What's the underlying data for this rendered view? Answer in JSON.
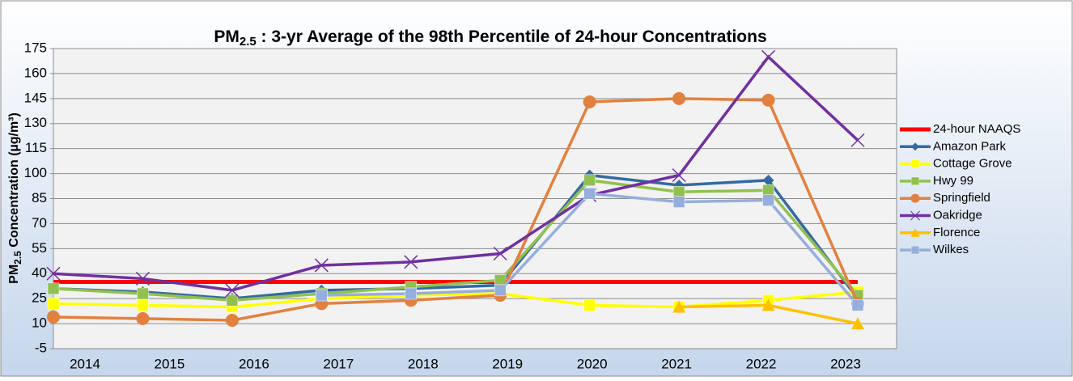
{
  "chart_data": {
    "type": "line",
    "title": {
      "main": "PM",
      "sub": "2.5",
      "rest": " : 3-yr Average of the 98th Percentile of 24-hour Concentrations"
    },
    "y_label": {
      "main": "PM",
      "sub": "2.5",
      "rest": " Concentration (µg/m³)"
    },
    "categories": [
      "2014",
      "2015",
      "2016",
      "2017",
      "2018",
      "2019",
      "2020",
      "2021",
      "2022",
      "2023"
    ],
    "ylim": [
      -5,
      175
    ],
    "yticks": [
      -5,
      10,
      25,
      40,
      55,
      70,
      85,
      100,
      115,
      130,
      145,
      160,
      175
    ],
    "grid": true,
    "legend": "right",
    "series": [
      {
        "name": "24-hour NAAQS",
        "color": "#ff0000",
        "marker": "none",
        "values": [
          35,
          35,
          35,
          35,
          35,
          35,
          35,
          35,
          35,
          35
        ]
      },
      {
        "name": "Amazon Park",
        "color": "#336aa3",
        "marker": "diamond",
        "values": [
          31,
          29,
          25,
          30,
          31,
          33,
          99,
          93,
          96,
          25
        ]
      },
      {
        "name": "Cottage Grove",
        "color": "#ffff00",
        "marker": "square",
        "values": [
          22,
          21,
          20,
          25,
          27,
          28,
          21,
          20,
          24,
          29
        ]
      },
      {
        "name": "Hwy 99",
        "color": "#92c050",
        "marker": "square",
        "values": [
          31,
          28,
          24,
          28,
          32,
          36,
          96,
          89,
          90,
          27
        ]
      },
      {
        "name": "Springfield",
        "color": "#e2813f",
        "marker": "circle",
        "values": [
          14,
          13,
          12,
          22,
          24,
          27,
          143,
          145,
          144,
          22
        ]
      },
      {
        "name": "Oakridge",
        "color": "#7030a0",
        "marker": "x",
        "values": [
          40,
          37,
          30,
          45,
          47,
          52,
          87,
          99,
          170,
          120
        ]
      },
      {
        "name": "Florence",
        "color": "#ffc000",
        "marker": "triangle",
        "values": [
          null,
          null,
          null,
          null,
          null,
          null,
          null,
          20,
          21,
          10
        ]
      },
      {
        "name": "Wilkes",
        "color": "#95aedb",
        "marker": "square",
        "values": [
          null,
          null,
          null,
          27,
          28,
          30,
          88,
          83,
          84,
          21
        ]
      }
    ]
  }
}
